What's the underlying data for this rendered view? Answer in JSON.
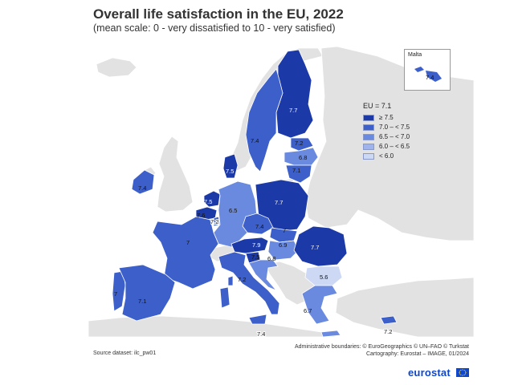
{
  "title": "Overall life satisfaction in the EU, 2022",
  "subtitle": "(mean scale: 0 - very dissatisfied to 10 - very satisfied)",
  "legend": {
    "title": "EU = 7.1",
    "classes": [
      {
        "label": "≥ 7.5",
        "color": "#1c39a8"
      },
      {
        "label": "7.0 – < 7.5",
        "color": "#3c5fc9"
      },
      {
        "label": "6.5 – < 7.0",
        "color": "#6a8ae0"
      },
      {
        "label": "6.0 – < 6.5",
        "color": "#9fb4ec"
      },
      {
        "label": "< 6.0",
        "color": "#ccd8f4"
      }
    ]
  },
  "inset": {
    "name": "Malta",
    "value": "7.4"
  },
  "countries": [
    {
      "id": "FI",
      "value": "7.7",
      "cls": 0
    },
    {
      "id": "SE",
      "value": "7.4",
      "cls": 1
    },
    {
      "id": "EE",
      "value": "7.2",
      "cls": 1
    },
    {
      "id": "LV",
      "value": "6.8",
      "cls": 2
    },
    {
      "id": "LT",
      "value": "7.1",
      "cls": 1
    },
    {
      "id": "DK",
      "value": "7.5",
      "cls": 0
    },
    {
      "id": "IE",
      "value": "7.4",
      "cls": 1
    },
    {
      "id": "NL",
      "value": "7.5",
      "cls": 0
    },
    {
      "id": "BE",
      "value": "7.6",
      "cls": 0
    },
    {
      "id": "LU",
      "value": "7.2",
      "cls": 1
    },
    {
      "id": "DE",
      "value": "6.5",
      "cls": 2
    },
    {
      "id": "PL",
      "value": "7.7",
      "cls": 0
    },
    {
      "id": "CZ",
      "value": "7.4",
      "cls": 1
    },
    {
      "id": "SK",
      "value": "7",
      "cls": 1
    },
    {
      "id": "AT",
      "value": "7.9",
      "cls": 0
    },
    {
      "id": "HU",
      "value": "6.9",
      "cls": 2
    },
    {
      "id": "SI",
      "value": "7.5",
      "cls": 0
    },
    {
      "id": "HR",
      "value": "6.8",
      "cls": 2
    },
    {
      "id": "RO",
      "value": "7.7",
      "cls": 0
    },
    {
      "id": "BG",
      "value": "5.6",
      "cls": 4
    },
    {
      "id": "FR",
      "value": "7",
      "cls": 1
    },
    {
      "id": "PT",
      "value": "7",
      "cls": 1
    },
    {
      "id": "ES",
      "value": "7.1",
      "cls": 1
    },
    {
      "id": "IT",
      "value": "7.2",
      "cls": 1
    },
    {
      "id": "EL",
      "value": "6.7",
      "cls": 2
    },
    {
      "id": "MT",
      "value": "7.4",
      "cls": 1
    },
    {
      "id": "CY",
      "value": "7.2",
      "cls": 1
    }
  ],
  "source": "Source dataset: ilc_pw01",
  "admin": "Administrative boundaries: © EuroGeographics © UN–FAO © Turkstat",
  "cartography": "Cartography: Eurostat – IMAGE, 01/2024",
  "brand": "eurostat"
}
